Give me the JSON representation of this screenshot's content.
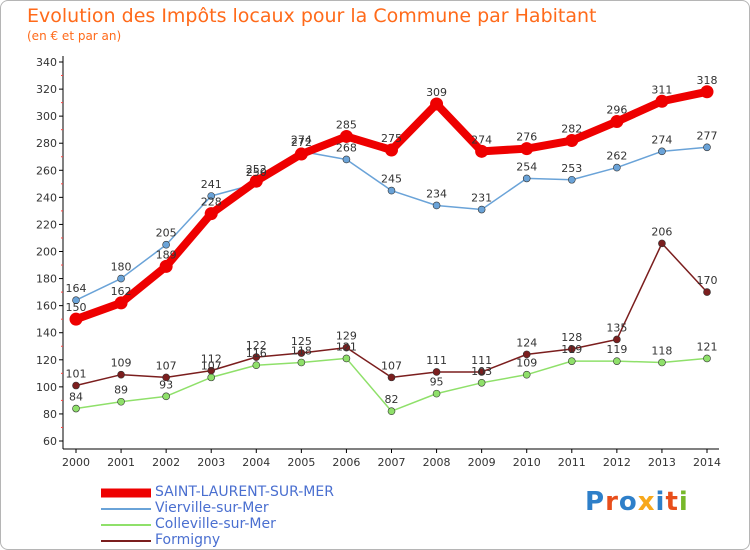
{
  "header": {
    "title": "Evolution des Impôts locaux pour la Commune par Habitant",
    "subtitle": "(en € et par an)"
  },
  "brand": {
    "text": "Proxiti",
    "colors": [
      "#2e7fc9",
      "#e84e1b",
      "#2e7fc9",
      "#f7a81b",
      "#2e7fc9",
      "#e84e1b",
      "#77b82a"
    ]
  },
  "chart_data": {
    "type": "line",
    "x": [
      2000,
      2001,
      2002,
      2003,
      2004,
      2005,
      2006,
      2007,
      2008,
      2009,
      2010,
      2011,
      2012,
      2013,
      2014
    ],
    "ylim": [
      60,
      340
    ],
    "yticks": [
      60,
      80,
      100,
      120,
      140,
      160,
      180,
      200,
      220,
      240,
      260,
      280,
      300,
      320,
      340
    ],
    "grid": false,
    "legend_position": "bottom-left",
    "series": [
      {
        "name": "SAINT-LAURENT-SUR-MER",
        "color": "#ee0000",
        "values": [
          150,
          162,
          189,
          228,
          252,
          272,
          285,
          275,
          309,
          274,
          276,
          282,
          296,
          311,
          318
        ]
      },
      {
        "name": "Vierville-sur-Mer",
        "color": "#6aa3d8",
        "values": [
          164,
          180,
          205,
          241,
          250,
          274,
          268,
          245,
          234,
          231,
          254,
          253,
          262,
          274,
          277
        ]
      },
      {
        "name": "Colleville-sur-Mer",
        "color": "#8fe06a",
        "values": [
          84,
          89,
          93,
          107,
          116,
          118,
          121,
          82,
          95,
          103,
          109,
          119,
          119,
          118,
          121
        ]
      },
      {
        "name": "Formigny",
        "color": "#7b1e1e",
        "values": [
          101,
          109,
          107,
          112,
          122,
          125,
          129,
          107,
          111,
          111,
          124,
          128,
          135,
          206,
          170
        ]
      }
    ]
  }
}
